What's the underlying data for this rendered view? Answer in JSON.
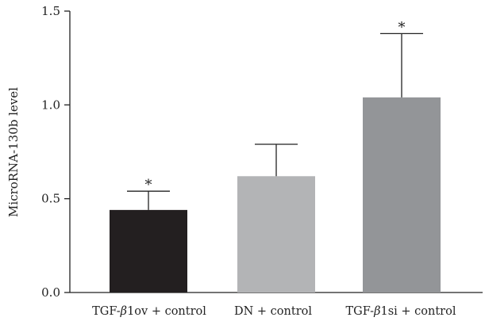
{
  "chart_data": {
    "type": "bar",
    "title": "",
    "xlabel": "",
    "ylabel": "MicroRNA-130b level",
    "ylim": [
      0,
      1.5
    ],
    "yticks": [
      "0.0",
      "0.5",
      "1.0",
      "1.5"
    ],
    "grid": false,
    "legend": "none",
    "categories": [
      {
        "prefix": "TGF-",
        "symbol": "β",
        "suffix": "1ov + control"
      },
      {
        "prefix": "DN + control",
        "symbol": "",
        "suffix": ""
      },
      {
        "prefix": "TGF-",
        "symbol": "β",
        "suffix": "1si + control"
      }
    ],
    "values": [
      0.44,
      0.62,
      1.04
    ],
    "errors_upper": [
      0.54,
      0.79,
      1.38
    ],
    "significance": [
      "*",
      "",
      "*"
    ],
    "colors": [
      "#231f20",
      "#b3b4b6",
      "#939598"
    ]
  }
}
